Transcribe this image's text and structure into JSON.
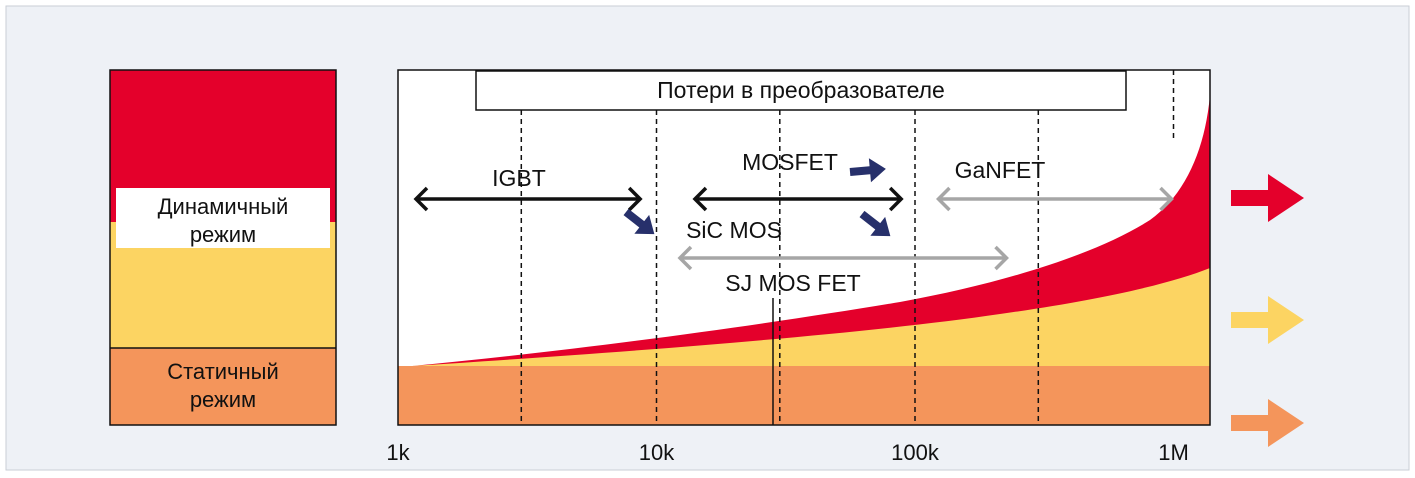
{
  "colors": {
    "background": "#eef1f6",
    "dynamic": "#e4002b",
    "conduction": "#fcd462",
    "static": "#f4955b",
    "black": "#111111",
    "gray": "#a6a6a6",
    "navy": "#27306b"
  },
  "legend": {
    "dynamic_label_line1": "Динамичный",
    "dynamic_label_line2": "режим",
    "static_label_line1": "Статичный",
    "static_label_line2": "режим"
  },
  "chart_data": {
    "type": "area",
    "title": "Потери в преобразователе",
    "xscale": "log",
    "xlim": [
      1000,
      1300000
    ],
    "x_ticks": [
      {
        "value": 1000,
        "label": "1k"
      },
      {
        "value": 10000,
        "label": "10k"
      },
      {
        "value": 100000,
        "label": "100k"
      },
      {
        "value": 1000000,
        "label": "1M"
      }
    ],
    "grid_x": [
      3000,
      10000,
      30000,
      100000,
      300000,
      1000000
    ],
    "series": [
      {
        "name": "Статичный режим",
        "color": "#f4955b"
      },
      {
        "name": "",
        "color": "#fcd462"
      },
      {
        "name": "Динамичный режим",
        "color": "#e4002b"
      }
    ],
    "ranges": [
      {
        "label": "IGBT",
        "from": 1000,
        "to": 8800,
        "color": "#111111"
      },
      {
        "label": "MOSFET",
        "from": 12000,
        "to": 90000,
        "color": "#111111"
      },
      {
        "label": "GaNFET",
        "from": 105000,
        "to": 1000000,
        "color": "#a6a6a6"
      },
      {
        "label": "SJ MOS FET",
        "from": 10500,
        "to": 230000,
        "color": "#a6a6a6"
      },
      {
        "label": "SiC MOS",
        "from": 10000,
        "to": 100000,
        "color": "#27306b"
      }
    ]
  }
}
